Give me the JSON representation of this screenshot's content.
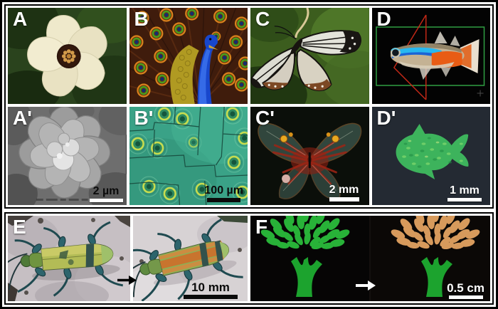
{
  "figure": {
    "type": "multi-panel scientific figure",
    "topic": "natural structural colors and their bioinspired replicas"
  },
  "panels": [
    {
      "id": "A",
      "label": "A",
      "subject": "cream flower with dark center on green foliage"
    },
    {
      "id": "B",
      "label": "B",
      "subject": "peacock displaying iridescent eyespot feathers"
    },
    {
      "id": "C",
      "label": "C",
      "subject": "butterfly with spread wings on green background"
    },
    {
      "id": "D",
      "label": "D",
      "subject": "neon tetra fish with green box and red plane outlines"
    },
    {
      "id": "A-prime",
      "label": "A'",
      "scale_bar": "2 µm",
      "subject": "SEM micrograph of petal-like microsphere cluster"
    },
    {
      "id": "B-prime",
      "label": "B'",
      "scale_bar": "100 µm",
      "subject": "green film with concentric ring eyespot pattern"
    },
    {
      "id": "C-prime",
      "label": "C'",
      "scale_bar": "2 mm",
      "subject": "butterfly-shaped structural color replica"
    },
    {
      "id": "D-prime",
      "label": "D'",
      "scale_bar": "1 mm",
      "subject": "green iridescent fish-shaped pattern"
    },
    {
      "id": "E",
      "label": "E",
      "scale_bar": "10 mm",
      "subject": "jewel beetle before and after color change"
    },
    {
      "id": "F",
      "label": "F",
      "scale_bar": "0.5 cm",
      "subject": "printed tree pattern, green leaves turning orange"
    }
  ],
  "arrows": [
    {
      "panel": "E",
      "glyph": "→",
      "color": "#000000"
    },
    {
      "panel": "F",
      "glyph": "→",
      "color": "#ffffff"
    }
  ],
  "colors": {
    "figure_border": "#000000",
    "gutter": "#ffffff",
    "panel_label_text": "#ffffff",
    "d_box_green": "#2f9e42",
    "d_plane_red": "#c22817",
    "b_prime_film_green": "#3aa287",
    "c_prime_red": "#9e2414",
    "d_prime_fish_green": "#3db35c",
    "f_trunk_green": "#1ca32e",
    "f_leaf_green": "#28b238",
    "f_leaf_orange": "#d79a5c"
  }
}
